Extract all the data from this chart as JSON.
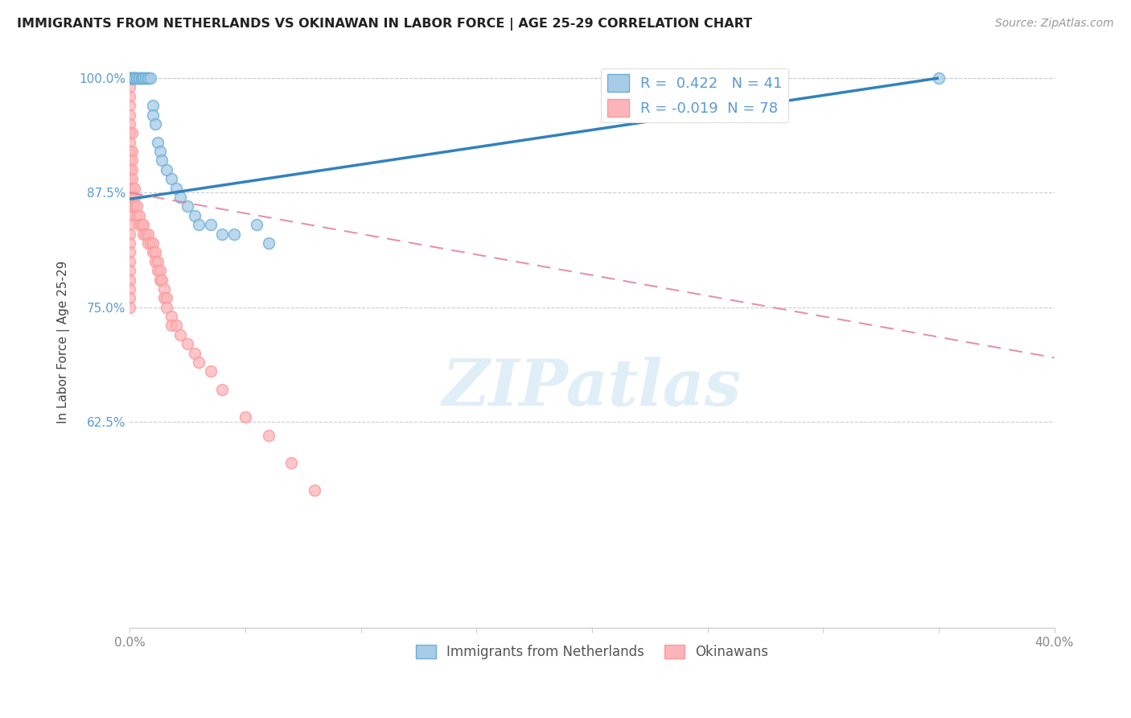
{
  "title": "IMMIGRANTS FROM NETHERLANDS VS OKINAWAN IN LABOR FORCE | AGE 25-29 CORRELATION CHART",
  "source": "Source: ZipAtlas.com",
  "ylabel": "In Labor Force | Age 25-29",
  "xlim": [
    0.0,
    0.4
  ],
  "ylim": [
    0.4,
    1.025
  ],
  "yticks": [
    0.625,
    0.75,
    0.875,
    1.0
  ],
  "ytick_labels": [
    "62.5%",
    "75.0%",
    "87.5%",
    "100.0%"
  ],
  "r_blue": 0.422,
  "n_blue": 41,
  "r_pink": -0.019,
  "n_pink": 78,
  "blue_color": "#a8cce8",
  "blue_edge_color": "#6baed6",
  "pink_color": "#fbb4b9",
  "pink_edge_color": "#fb9a99",
  "line_blue_color": "#3182bd",
  "line_pink_color": "#de7fa3",
  "watermark": "ZIPatlas",
  "blue_line_x0": 0.0,
  "blue_line_y0": 0.868,
  "blue_line_x1": 0.35,
  "blue_line_y1": 1.0,
  "pink_line_x0": 0.0,
  "pink_line_y0": 0.875,
  "pink_line_x1": 0.4,
  "pink_line_y1": 0.695,
  "blue_scatter_x": [
    0.001,
    0.001,
    0.001,
    0.001,
    0.001,
    0.002,
    0.002,
    0.002,
    0.002,
    0.003,
    0.003,
    0.004,
    0.004,
    0.005,
    0.005,
    0.006,
    0.006,
    0.007,
    0.007,
    0.008,
    0.008,
    0.009,
    0.01,
    0.01,
    0.011,
    0.012,
    0.013,
    0.014,
    0.016,
    0.018,
    0.02,
    0.022,
    0.025,
    0.028,
    0.03,
    0.035,
    0.04,
    0.045,
    0.055,
    0.06,
    0.35
  ],
  "blue_scatter_y": [
    1.0,
    1.0,
    1.0,
    1.0,
    1.0,
    1.0,
    1.0,
    1.0,
    1.0,
    1.0,
    1.0,
    1.0,
    1.0,
    1.0,
    1.0,
    1.0,
    1.0,
    1.0,
    1.0,
    1.0,
    1.0,
    1.0,
    0.97,
    0.96,
    0.95,
    0.93,
    0.92,
    0.91,
    0.9,
    0.89,
    0.88,
    0.87,
    0.86,
    0.85,
    0.84,
    0.84,
    0.83,
    0.83,
    0.84,
    0.82,
    1.0
  ],
  "pink_scatter_x": [
    0.0,
    0.0,
    0.0,
    0.0,
    0.0,
    0.0,
    0.0,
    0.0,
    0.0,
    0.0,
    0.0,
    0.0,
    0.0,
    0.0,
    0.0,
    0.0,
    0.0,
    0.0,
    0.0,
    0.0,
    0.0,
    0.0,
    0.0,
    0.0,
    0.0,
    0.0,
    0.0,
    0.0,
    0.0,
    0.0,
    0.001,
    0.001,
    0.001,
    0.001,
    0.001,
    0.001,
    0.001,
    0.001,
    0.002,
    0.002,
    0.002,
    0.003,
    0.003,
    0.004,
    0.004,
    0.005,
    0.006,
    0.006,
    0.007,
    0.008,
    0.008,
    0.009,
    0.01,
    0.01,
    0.011,
    0.011,
    0.012,
    0.012,
    0.013,
    0.013,
    0.014,
    0.015,
    0.015,
    0.016,
    0.016,
    0.018,
    0.018,
    0.02,
    0.022,
    0.025,
    0.028,
    0.03,
    0.035,
    0.04,
    0.05,
    0.06,
    0.07,
    0.08
  ],
  "pink_scatter_y": [
    1.0,
    1.0,
    1.0,
    1.0,
    1.0,
    0.99,
    0.98,
    0.97,
    0.96,
    0.95,
    0.94,
    0.93,
    0.92,
    0.91,
    0.9,
    0.89,
    0.88,
    0.87,
    0.86,
    0.85,
    0.84,
    0.83,
    0.82,
    0.81,
    0.8,
    0.79,
    0.78,
    0.77,
    0.76,
    0.75,
    0.94,
    0.92,
    0.91,
    0.9,
    0.89,
    0.88,
    0.87,
    0.86,
    0.88,
    0.87,
    0.86,
    0.86,
    0.85,
    0.85,
    0.84,
    0.84,
    0.84,
    0.83,
    0.83,
    0.83,
    0.82,
    0.82,
    0.82,
    0.81,
    0.81,
    0.8,
    0.8,
    0.79,
    0.79,
    0.78,
    0.78,
    0.77,
    0.76,
    0.76,
    0.75,
    0.74,
    0.73,
    0.73,
    0.72,
    0.71,
    0.7,
    0.69,
    0.68,
    0.66,
    0.63,
    0.61,
    0.58,
    0.55
  ]
}
